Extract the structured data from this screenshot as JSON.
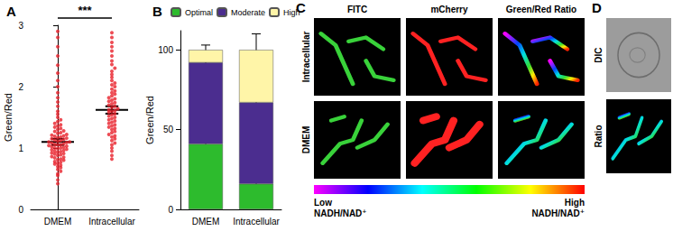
{
  "chart_data": [
    {
      "type": "scatter",
      "title": "A",
      "categories": [
        "DMEM",
        "Intracellular"
      ],
      "values": [
        [
          0.42,
          0.48,
          0.55,
          0.58,
          0.62,
          0.65,
          0.68,
          0.7,
          0.72,
          0.74,
          0.75,
          0.77,
          0.78,
          0.8,
          0.81,
          0.82,
          0.84,
          0.85,
          0.86,
          0.88,
          0.89,
          0.9,
          0.91,
          0.92,
          0.93,
          0.94,
          0.95,
          0.96,
          0.97,
          0.98,
          0.99,
          1.0,
          1.0,
          1.01,
          1.02,
          1.03,
          1.04,
          1.05,
          1.05,
          1.06,
          1.07,
          1.08,
          1.09,
          1.1,
          1.1,
          1.11,
          1.12,
          1.13,
          1.14,
          1.15,
          1.16,
          1.17,
          1.18,
          1.19,
          1.2,
          1.21,
          1.22,
          1.24,
          1.25,
          1.27,
          1.28,
          1.3,
          1.32,
          1.34,
          1.36,
          1.38,
          1.4,
          1.43,
          1.46,
          1.5,
          1.55,
          1.6,
          1.68,
          1.75,
          1.82,
          1.9,
          2.0,
          2.1,
          2.22,
          2.35,
          2.5,
          2.65,
          2.8,
          2.9
        ],
        [
          0.82,
          0.88,
          0.95,
          1.0,
          1.05,
          1.08,
          1.12,
          1.15,
          1.18,
          1.2,
          1.22,
          1.25,
          1.27,
          1.3,
          1.32,
          1.34,
          1.36,
          1.38,
          1.4,
          1.42,
          1.44,
          1.46,
          1.48,
          1.5,
          1.52,
          1.54,
          1.56,
          1.58,
          1.6,
          1.61,
          1.62,
          1.64,
          1.66,
          1.68,
          1.7,
          1.72,
          1.74,
          1.76,
          1.78,
          1.8,
          1.82,
          1.85,
          1.88,
          1.9,
          1.93,
          1.96,
          2.0,
          2.03,
          2.06,
          2.1,
          2.15,
          2.2,
          2.25,
          2.3,
          2.36,
          2.42,
          2.5,
          2.58,
          2.65,
          2.72,
          2.8,
          2.88
        ]
      ],
      "means": [
        1.1,
        1.62
      ],
      "errors": [
        0.05,
        0.06
      ],
      "color": "#e8202a",
      "marker": "circle",
      "ylabel": "Green/Red",
      "ylim": [
        0,
        3
      ],
      "yticks": [
        0,
        1,
        2,
        3
      ],
      "annotation": "***",
      "grid": false
    },
    {
      "type": "bar",
      "title": "B",
      "stacked": true,
      "categories": [
        "DMEM",
        "Intracellular"
      ],
      "series": [
        {
          "name": "Optimal",
          "color": "#2dbb2d",
          "values": [
            41,
            16
          ],
          "errors": [
            1,
            7
          ]
        },
        {
          "name": "Moderate",
          "color": "#4b2d8f",
          "values": [
            51,
            51
          ],
          "errors": [
            2,
            3
          ]
        },
        {
          "name": "High",
          "color": "#fff5a8",
          "values": [
            8,
            33
          ],
          "errors": [
            3,
            10
          ]
        }
      ],
      "ylabel": "Green/Red",
      "ylim": [
        0,
        112
      ],
      "yticks": [
        0,
        50,
        100
      ],
      "legend": "top",
      "grid": false
    }
  ],
  "image_panels": {
    "C": {
      "label": "C",
      "columns": [
        "FITC",
        "mCherry",
        "Green/Red Ratio"
      ],
      "rows": [
        "Intracellular",
        "DMEM"
      ],
      "colorbar": {
        "low": "Low\nNADH/NAD⁺",
        "high": "High\nNADH/NAD⁺"
      }
    },
    "D": {
      "label": "D",
      "rows": [
        "DIC",
        "Ratio"
      ]
    }
  }
}
